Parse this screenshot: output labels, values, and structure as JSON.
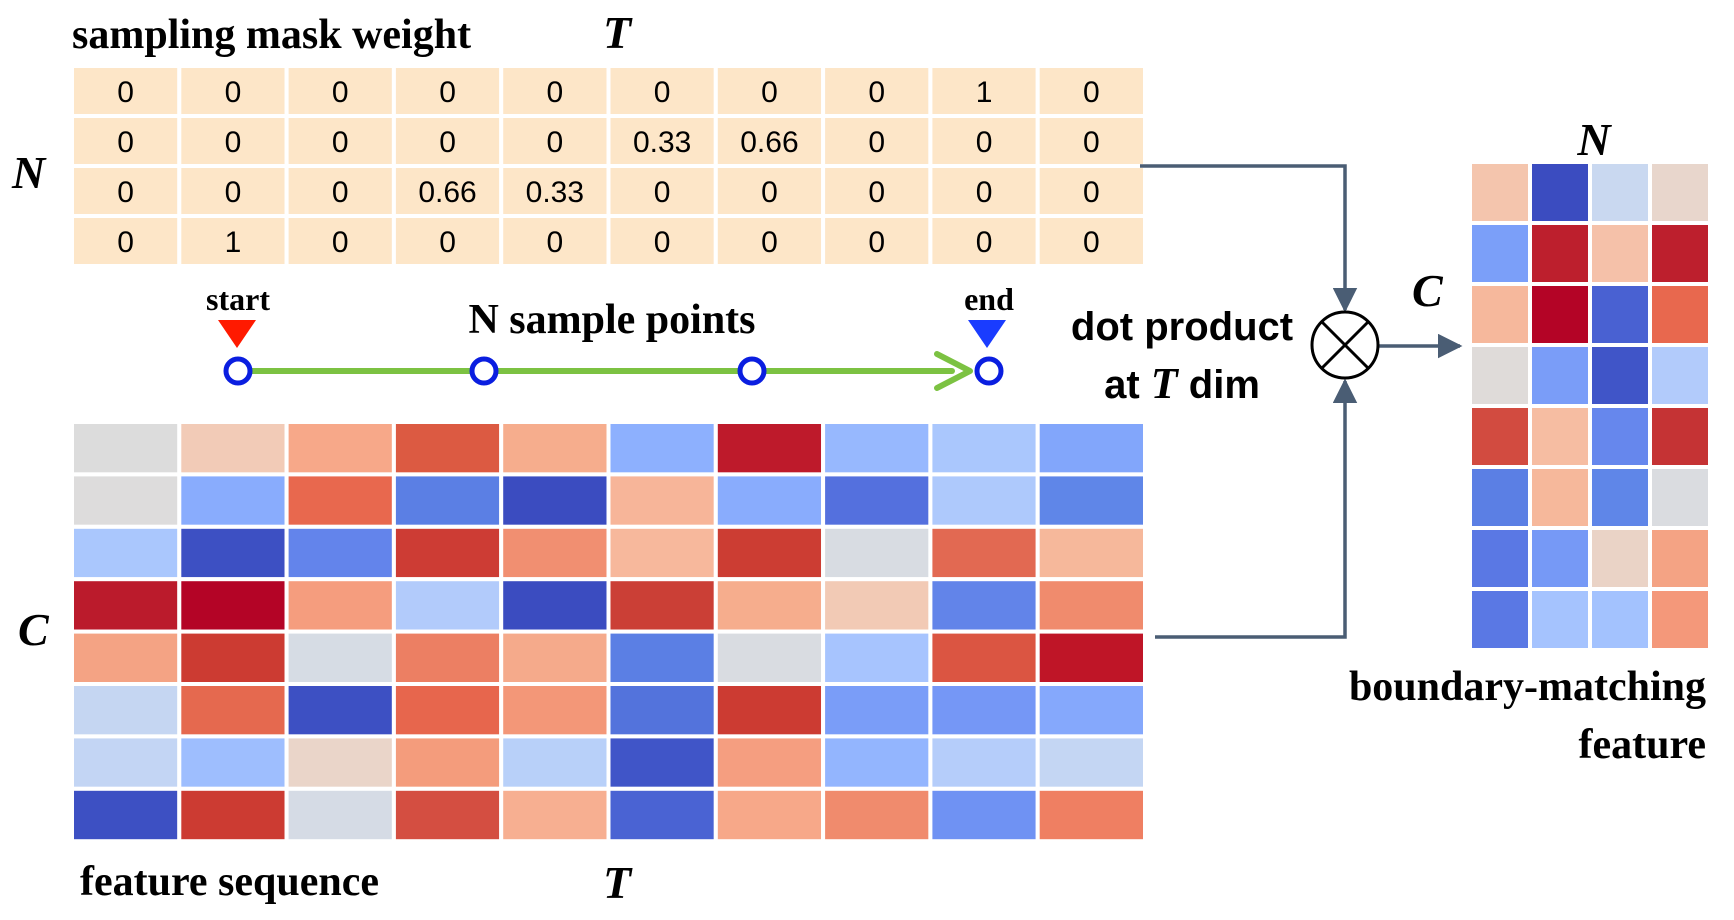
{
  "mask": {
    "title": "sampling mask weight",
    "rows_label": "N",
    "cols_label": "T",
    "fill": "#fde6c8",
    "values": [
      [
        "0",
        "0",
        "0",
        "0",
        "0",
        "0",
        "0",
        "0",
        "1",
        "0"
      ],
      [
        "0",
        "0",
        "0",
        "0",
        "0",
        "0.33",
        "0.66",
        "0",
        "0",
        "0"
      ],
      [
        "0",
        "0",
        "0",
        "0.66",
        "0.33",
        "0",
        "0",
        "0",
        "0",
        "0"
      ],
      [
        "0",
        "1",
        "0",
        "0",
        "0",
        "0",
        "0",
        "0",
        "0",
        "0"
      ]
    ]
  },
  "sampling": {
    "start_label": "start",
    "end_label": "end",
    "caption": "N sample points",
    "line_color": "#7cc242",
    "point_color": "#0a1ee0",
    "start_marker_color": "#ff1a00",
    "end_marker_color": "#1a3cff"
  },
  "features": {
    "caption": "feature sequence",
    "rows_label": "C",
    "cols_label": "T",
    "colors": [
      [
        "#dcdcdc",
        "#f2cbb7",
        "#f7a889",
        "#dc5a42",
        "#f6ad8d",
        "#8db0fe",
        "#be1a2b",
        "#97b8fe",
        "#aac7fd",
        "#82a6fb"
      ],
      [
        "#dddcdc",
        "#89acfd",
        "#e8684e",
        "#5b7fe4",
        "#3b4cc0",
        "#f7b599",
        "#89acfd",
        "#5470de",
        "#aec9fc",
        "#5f86e8"
      ],
      [
        "#aac7fd",
        "#3d50c3",
        "#6384eb",
        "#cd3c34",
        "#f18f71",
        "#f7b89c",
        "#cc3d33",
        "#d8dce2",
        "#e26952",
        "#f6b89b"
      ],
      [
        "#bb1b2c",
        "#b40426",
        "#f59d7e",
        "#b2cbfb",
        "#3b4cc0",
        "#cb3f36",
        "#f6ad8d",
        "#f2cab5",
        "#6284e9",
        "#f08b6d"
      ],
      [
        "#f4a384",
        "#cc3b32",
        "#d6dce4",
        "#ec7f63",
        "#f5aa8b",
        "#5b7fe4",
        "#d9dce1",
        "#a7c4fe",
        "#db5542",
        "#bf1527"
      ],
      [
        "#c5d6f2",
        "#e5694f",
        "#3d50c3",
        "#e7664d",
        "#f39778",
        "#5373dc",
        "#cc3b32",
        "#7a9df8",
        "#7597f6",
        "#85a8fc"
      ],
      [
        "#c3d5f4",
        "#9ebefe",
        "#ead5c9",
        "#f49c7c",
        "#b8d0f9",
        "#4055c8",
        "#f59e80",
        "#93b5fe",
        "#b5cdfa",
        "#c4d6f3"
      ],
      [
        "#3d50c3",
        "#cc3b32",
        "#d5dbe5",
        "#d44e41",
        "#f7af91",
        "#4a63d3",
        "#f7a889",
        "#f08b6d",
        "#6f92f3",
        "#ef7f62"
      ]
    ]
  },
  "operation": {
    "line1": "dot product",
    "line2_prefix": "at ",
    "line2_symbol": "T",
    "line2_suffix": " dim",
    "arrow_color": "#4a5d74"
  },
  "output": {
    "cols_label": "N",
    "rows_label": "C",
    "caption_line1": "boundary-matching",
    "caption_line2": "feature",
    "colors": [
      [
        "#f4c5ad",
        "#3b4cc0",
        "#c9d8f0",
        "#e8d6cc"
      ],
      [
        "#7b9ff9",
        "#bd1f2d",
        "#f5c1a9",
        "#bd1f2d"
      ],
      [
        "#f6b89c",
        "#b40426",
        "#4961d2",
        "#e8684e"
      ],
      [
        "#dfdbd9",
        "#7a9df8",
        "#4055c8",
        "#b2cbfb"
      ],
      [
        "#d24b40",
        "#f6bda2",
        "#6687ed",
        "#c53334"
      ],
      [
        "#5b7fe4",
        "#f6b89b",
        "#5f86e8",
        "#dadce0"
      ],
      [
        "#5a78e4",
        "#7699f6",
        "#ead3c6",
        "#f4a384"
      ],
      [
        "#5a78e4",
        "#a5c3fe",
        "#a3c2fe",
        "#f4987a"
      ]
    ]
  }
}
